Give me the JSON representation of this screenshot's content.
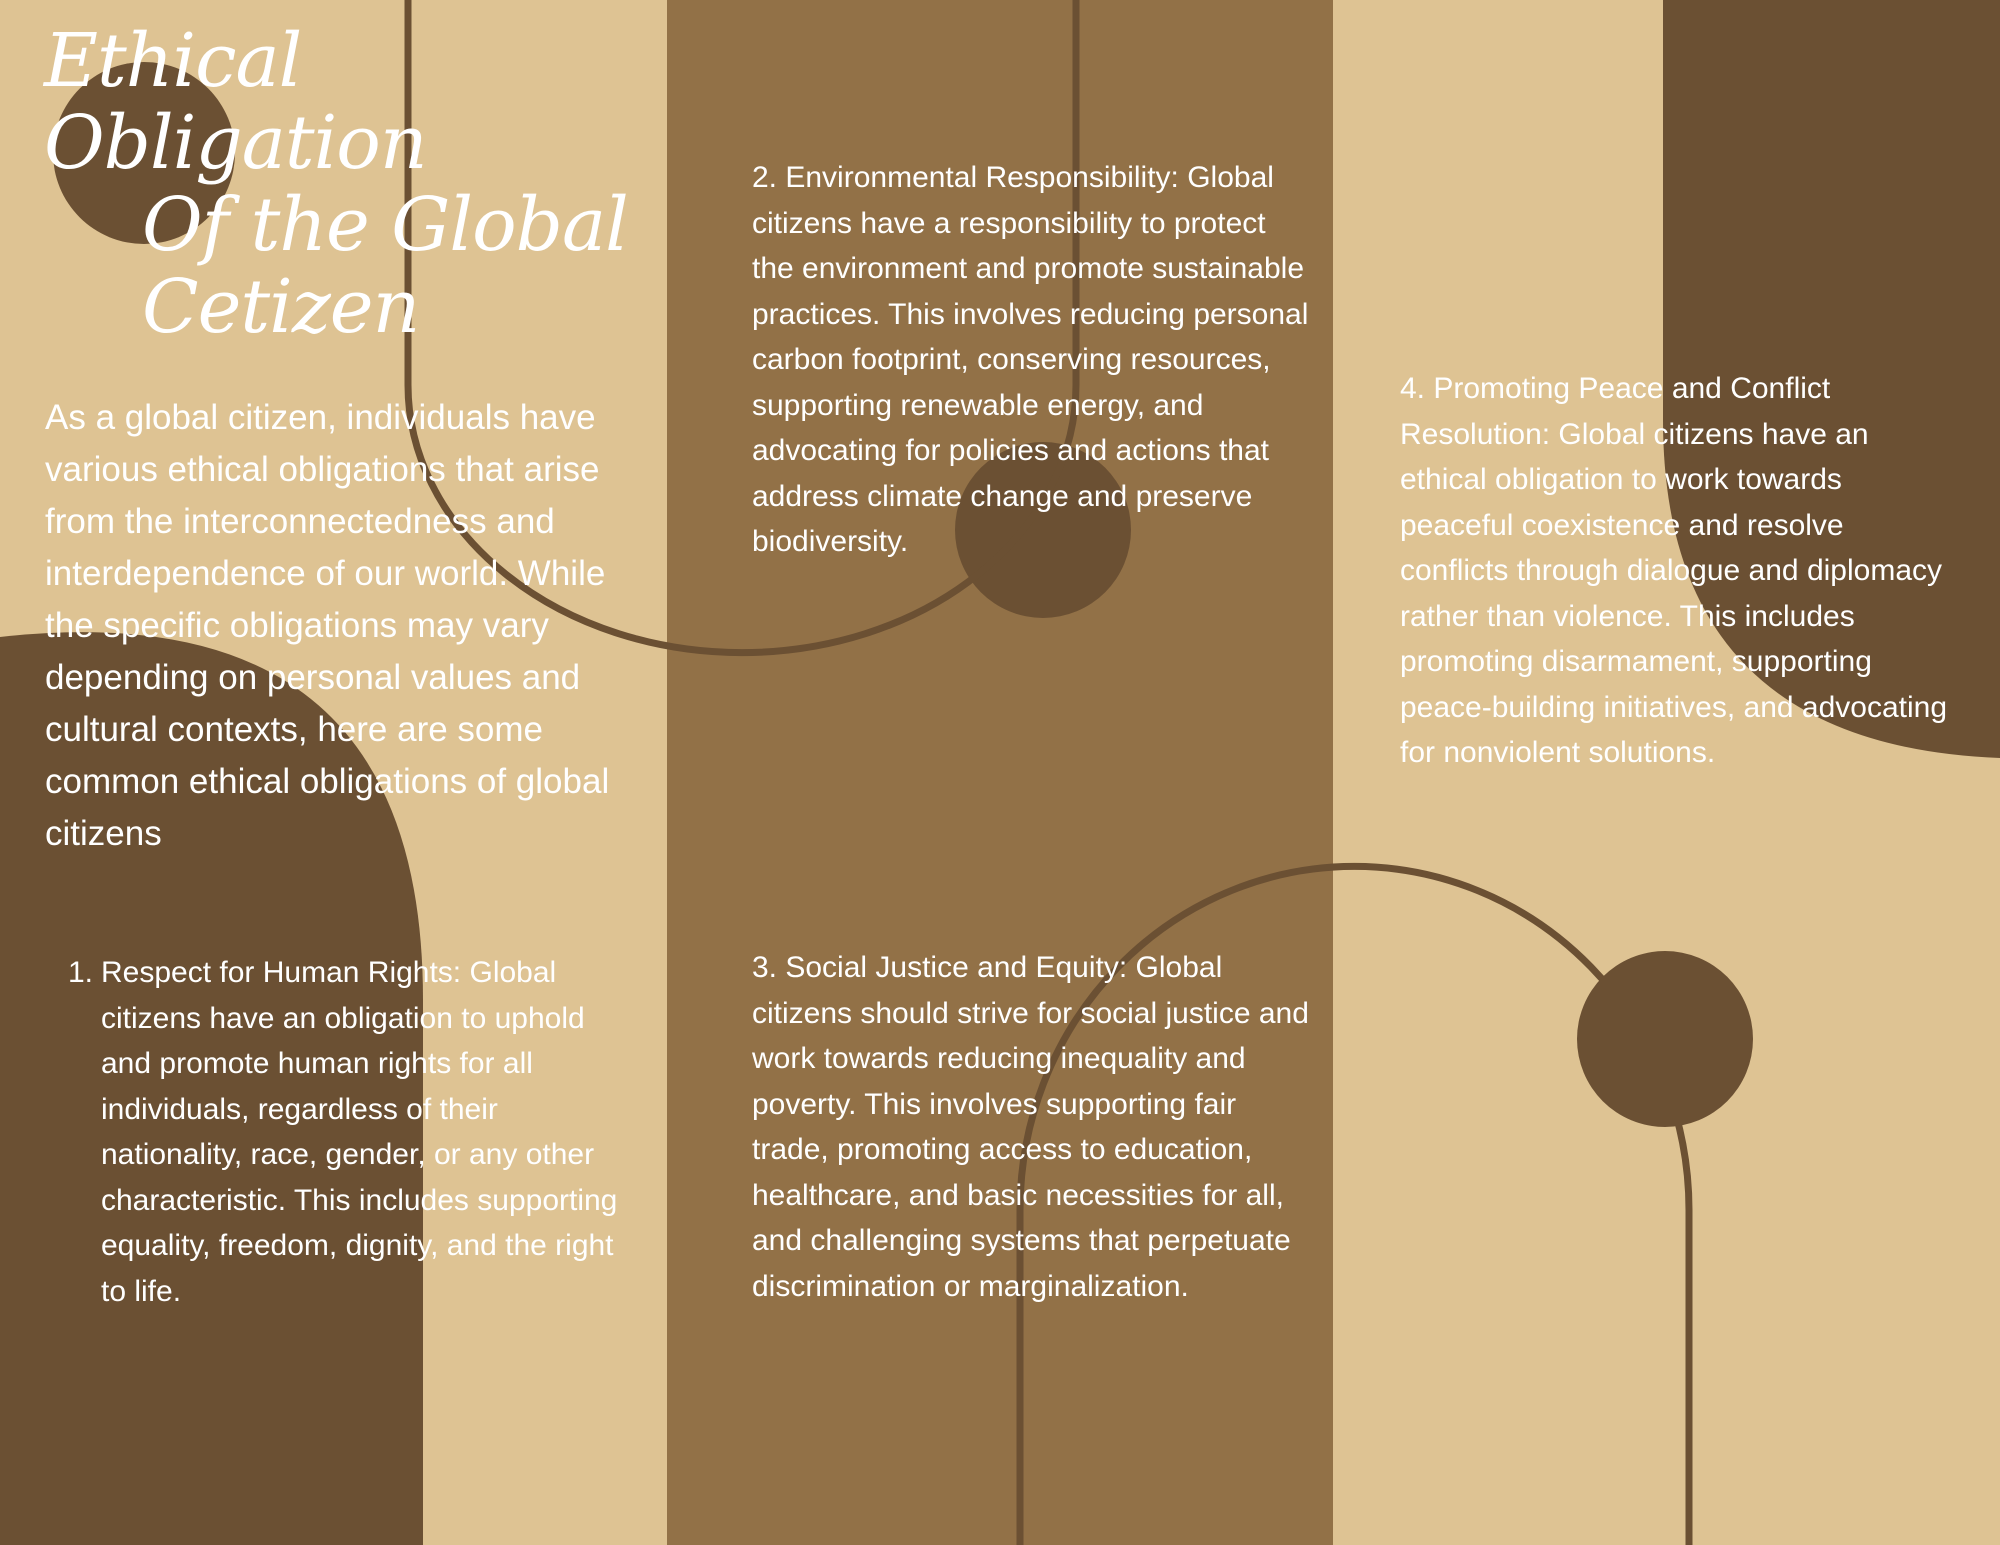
{
  "colors": {
    "background": "#dec393",
    "middle_panel": "#927147",
    "dark_shape": "#6b5033",
    "text": "#ffffff"
  },
  "title": {
    "line1": "Ethical",
    "line2": "Obligation",
    "line3": "Of the Global",
    "line4": "Cetizen"
  },
  "intro": "As a global citizen, individuals have various ethical obligations that arise from the interconnectedness and interdependence of our world. While the specific obligations may vary depending on personal values and cultural contexts, here are some common ethical obligations of global citizens",
  "items": [
    {
      "number": "1.",
      "text": "Respect for Human Rights: Global citizens have an obligation to uphold and promote human rights for all individuals, regardless of their nationality, race, gender, or any other characteristic. This includes supporting equality, freedom, dignity, and the right to life."
    },
    {
      "text": "2. Environmental Responsibility: Global citizens have a responsibility to protect the environment and promote sustainable practices. This involves reducing personal carbon footprint, conserving resources, supporting renewable energy, and advocating for policies and actions that address climate change and preserve biodiversity."
    },
    {
      "text": "3. Social Justice and Equity: Global citizens should strive for social justice and work towards reducing inequality and poverty. This involves supporting fair trade, promoting access to education, healthcare, and basic necessities for all, and challenging systems that perpetuate discrimination or marginalization."
    },
    {
      "text": "4. Promoting Peace and Conflict Resolution: Global citizens have an ethical obligation to work towards peaceful coexistence and resolve conflicts through dialogue and diplomacy rather than violence. This includes promoting disarmament, supporting peace-building initiatives, and advocating for nonviolent solutions."
    }
  ]
}
